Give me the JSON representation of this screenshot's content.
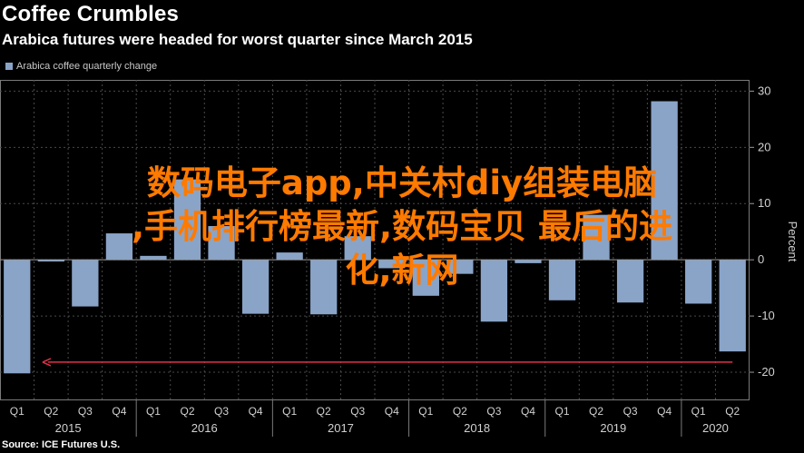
{
  "header": {
    "title": "Coffee Crumbles",
    "subtitle": "Arabica futures were headed for worst quarter since March 2015"
  },
  "legend": {
    "label": "Arabica coffee quarterly change",
    "color": "#8aa4c8"
  },
  "footer": {
    "source": "Source: ICE Futures U.S."
  },
  "overlay": {
    "lines": [
      "数码电子app,中关村diy组装电脑",
      ",手机排行榜最新,数码宝贝 最后的进",
      "化,新网"
    ],
    "color": "#ff7a00"
  },
  "chart_data": {
    "type": "bar",
    "categories": [
      "Q1",
      "Q2",
      "Q3",
      "Q4",
      "Q1",
      "Q2",
      "Q3",
      "Q4",
      "Q1",
      "Q2",
      "Q3",
      "Q4",
      "Q1",
      "Q2",
      "Q3",
      "Q4",
      "Q1",
      "Q2",
      "Q3",
      "Q4",
      "Q1",
      "Q2"
    ],
    "years": [
      {
        "label": "2015",
        "start": 0,
        "end": 3
      },
      {
        "label": "2016",
        "start": 4,
        "end": 7
      },
      {
        "label": "2017",
        "start": 8,
        "end": 11
      },
      {
        "label": "2018",
        "start": 12,
        "end": 15
      },
      {
        "label": "2019",
        "start": 16,
        "end": 19
      },
      {
        "label": "2020",
        "start": 20,
        "end": 21
      }
    ],
    "series": [
      {
        "name": "Arabica coffee quarterly change",
        "values": [
          -20.2,
          -0.3,
          -8.3,
          4.7,
          0.7,
          14.3,
          6.0,
          -9.6,
          1.3,
          -9.7,
          4.2,
          -1.5,
          -6.4,
          -2.5,
          -11.0,
          -0.6,
          -7.2,
          8.0,
          -7.6,
          28.2,
          -7.8,
          -16.3
        ]
      }
    ],
    "ylabel": "Percent",
    "ylim": [
      -25,
      32
    ],
    "yticks": [
      -20,
      -10,
      0,
      10,
      20,
      30
    ],
    "ytick_labels": [
      "-20",
      "-10",
      "0",
      "10",
      "20",
      "30"
    ],
    "grid": true,
    "annotation": {
      "type": "arrow",
      "from_index": 21,
      "to_index": 1,
      "value": -18.2,
      "color": "#e0304a"
    }
  }
}
